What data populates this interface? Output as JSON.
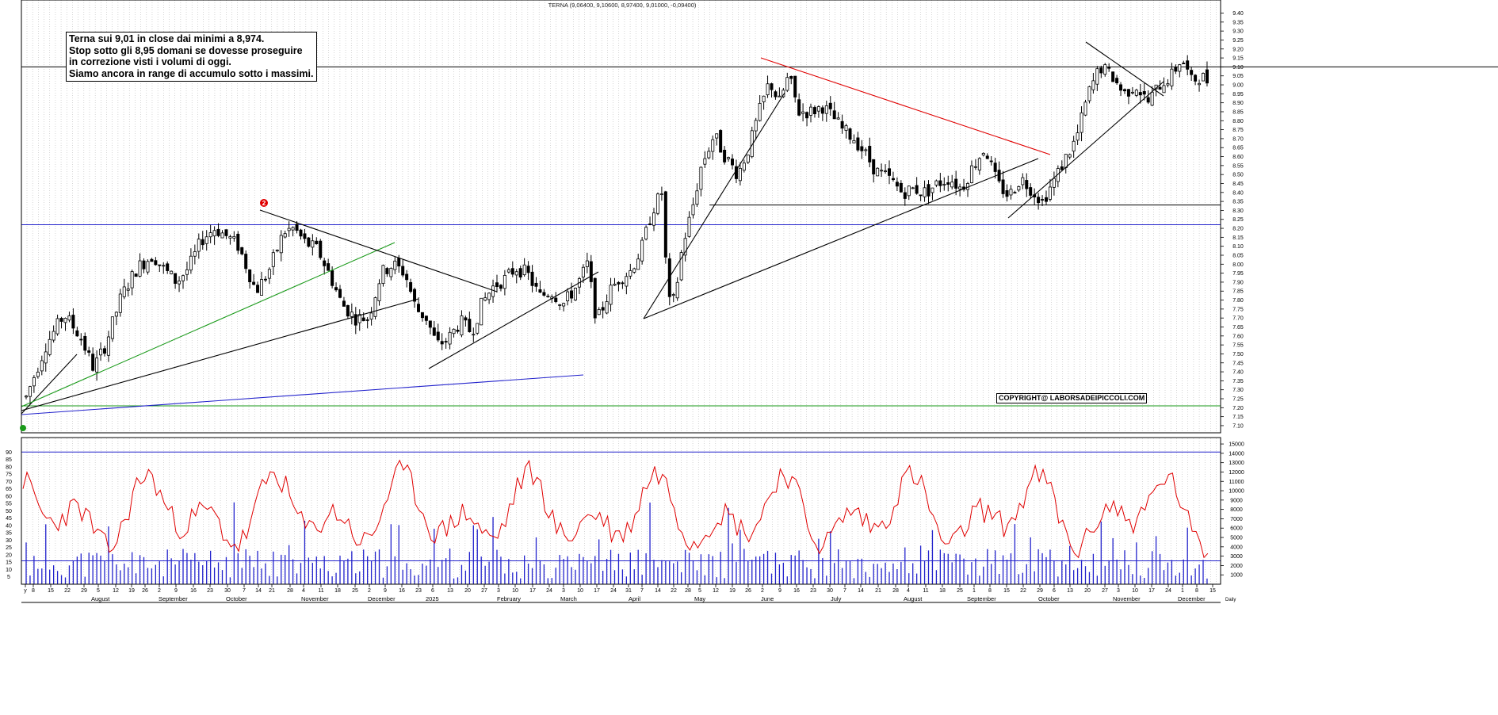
{
  "header": {
    "quote": "TERNA (9,06400, 9,10600, 8,97400, 9,01000, -0,09400)"
  },
  "annotation": {
    "lines": [
      "Terna sui 9,01 in close dai minimi a 8,974.",
      "Stop sotto gli 8,95 domani se dovesse proseguire",
      "in correzione visti i volumi di oggi.",
      "Siamo ancora in range di accumulo sotto i massimi."
    ]
  },
  "copyright": "COPYRIGHT@ LABORSADEIPICCOLI.COM",
  "marker_label": "2",
  "colors": {
    "candle": "#000000",
    "volume": "#2222cc",
    "oscillator": "#e00000",
    "support": "#2222cc",
    "green_line": "#1a9a1a",
    "red_trend": "#e00000",
    "trend": "#000000",
    "grid": "#bbbbbb"
  },
  "chart_data": [
    {
      "type": "candlestick",
      "title": "TERNA (9,06400, 9,10600, 8,97400, 9,01000, -0,09400)",
      "ylim": [
        7.06,
        9.42
      ],
      "y_ticks": [
        "9.40",
        "9.35",
        "9.30",
        "9.25",
        "9.20",
        "9.15",
        "9.10",
        "9.05",
        "9.00",
        "8.95",
        "8.90",
        "8.85",
        "8.80",
        "8.75",
        "8.70",
        "8.65",
        "8.60",
        "8.55",
        "8.50",
        "8.45",
        "8.40",
        "8.35",
        "8.30",
        "8.25",
        "8.20",
        "8.15",
        "8.10",
        "8.05",
        "8.00",
        "7.95",
        "7.90",
        "7.85",
        "7.80",
        "7.75",
        "7.70",
        "7.65",
        "7.60",
        "7.55",
        "7.50",
        "7.45",
        "7.40",
        "7.35",
        "7.30",
        "7.25",
        "7.20",
        "7.15",
        "7.10"
      ],
      "price_path": [
        [
          0,
          7.26
        ],
        [
          25,
          7.55
        ],
        [
          48,
          7.72
        ],
        [
          68,
          7.6
        ],
        [
          85,
          7.42
        ],
        [
          100,
          7.55
        ],
        [
          120,
          7.82
        ],
        [
          140,
          7.98
        ],
        [
          160,
          8.05
        ],
        [
          172,
          7.98
        ],
        [
          190,
          7.9
        ],
        [
          205,
          7.98
        ],
        [
          222,
          8.14
        ],
        [
          238,
          8.2
        ],
        [
          255,
          8.15
        ],
        [
          268,
          8.1
        ],
        [
          290,
          7.85
        ],
        [
          305,
          7.95
        ],
        [
          325,
          8.18
        ],
        [
          338,
          8.2
        ],
        [
          352,
          8.12
        ],
        [
          368,
          8.08
        ],
        [
          385,
          7.92
        ],
        [
          398,
          7.78
        ],
        [
          415,
          7.7
        ],
        [
          432,
          7.7
        ],
        [
          448,
          7.95
        ],
        [
          463,
          8.0
        ],
        [
          478,
          7.95
        ],
        [
          492,
          7.75
        ],
        [
          505,
          7.7
        ],
        [
          518,
          7.55
        ],
        [
          532,
          7.58
        ],
        [
          548,
          7.68
        ],
        [
          562,
          7.62
        ],
        [
          575,
          7.78
        ],
        [
          590,
          7.88
        ],
        [
          605,
          7.92
        ],
        [
          618,
          7.98
        ],
        [
          632,
          7.95
        ],
        [
          648,
          7.82
        ],
        [
          662,
          7.85
        ],
        [
          678,
          7.78
        ],
        [
          695,
          7.88
        ],
        [
          708,
          8.0
        ],
        [
          720,
          7.68
        ],
        [
          735,
          7.84
        ],
        [
          748,
          7.92
        ],
        [
          762,
          7.96
        ],
        [
          776,
          8.08
        ],
        [
          790,
          8.3
        ],
        [
          802,
          8.4
        ],
        [
          810,
          7.78
        ],
        [
          818,
          7.8
        ],
        [
          828,
          8.1
        ],
        [
          840,
          8.3
        ],
        [
          852,
          8.55
        ],
        [
          868,
          8.72
        ],
        [
          882,
          8.6
        ],
        [
          898,
          8.5
        ],
        [
          912,
          8.65
        ],
        [
          925,
          8.85
        ],
        [
          938,
          9.02
        ],
        [
          950,
          8.9
        ],
        [
          962,
          9.05
        ],
        [
          975,
          8.85
        ],
        [
          990,
          8.85
        ],
        [
          1005,
          8.88
        ],
        [
          1018,
          8.82
        ],
        [
          1030,
          8.75
        ],
        [
          1045,
          8.7
        ],
        [
          1058,
          8.62
        ],
        [
          1072,
          8.52
        ],
        [
          1088,
          8.48
        ],
        [
          1105,
          8.4
        ],
        [
          1120,
          8.42
        ],
        [
          1135,
          8.4
        ],
        [
          1150,
          8.45
        ],
        [
          1165,
          8.48
        ],
        [
          1180,
          8.42
        ],
        [
          1195,
          8.55
        ],
        [
          1210,
          8.65
        ],
        [
          1225,
          8.45
        ],
        [
          1240,
          8.38
        ],
        [
          1255,
          8.48
        ],
        [
          1268,
          8.42
        ],
        [
          1282,
          8.35
        ],
        [
          1295,
          8.45
        ],
        [
          1310,
          8.58
        ],
        [
          1325,
          8.7
        ],
        [
          1340,
          8.95
        ],
        [
          1355,
          9.1
        ],
        [
          1370,
          9.05
        ],
        [
          1385,
          8.95
        ],
        [
          1400,
          9.0
        ],
        [
          1415,
          8.9
        ],
        [
          1430,
          9.0
        ],
        [
          1445,
          9.05
        ],
        [
          1458,
          9.15
        ],
        [
          1470,
          9.02
        ],
        [
          1482,
          9.05
        ],
        [
          1494,
          9.01
        ]
      ],
      "support_levels": [
        9.1,
        8.33,
        8.22,
        7.21
      ],
      "last_close": 9.01
    },
    {
      "type": "bar+line",
      "left_ticks": [
        "90",
        "85",
        "80",
        "75",
        "70",
        "65",
        "60",
        "55",
        "50",
        "45",
        "40",
        "35",
        "30",
        "25",
        "20",
        "15",
        "10",
        "5"
      ],
      "right_ticks": [
        "15000",
        "14000",
        "13000",
        "12000",
        "11000",
        "10000",
        "9000",
        "8000",
        "7000",
        "6000",
        "5000",
        "4000",
        "3000",
        "2000",
        "1000"
      ],
      "ylim_oscillator": [
        0,
        95
      ],
      "ylim_volume": [
        0,
        15600
      ],
      "oscillator_level": 90,
      "volume_level": 2500
    }
  ],
  "x_axis": {
    "small_ticks": [
      {
        "label": "y",
        "x": 32
      },
      {
        "label": "8",
        "x": 42
      },
      {
        "label": "15",
        "x": 64
      },
      {
        "label": "22",
        "x": 85
      },
      {
        "label": "29",
        "x": 106
      },
      {
        "label": "5",
        "x": 124
      },
      {
        "label": "12",
        "x": 146
      },
      {
        "label": "19",
        "x": 166
      },
      {
        "label": "26",
        "x": 183
      },
      {
        "label": "2",
        "x": 201
      },
      {
        "label": "9",
        "x": 222
      },
      {
        "label": "16",
        "x": 244
      },
      {
        "label": "23",
        "x": 265
      },
      {
        "label": "30",
        "x": 287
      },
      {
        "label": "7",
        "x": 308
      },
      {
        "label": "14",
        "x": 326
      },
      {
        "label": "21",
        "x": 343
      },
      {
        "label": "28",
        "x": 366
      },
      {
        "label": "4",
        "x": 383
      },
      {
        "label": "11",
        "x": 405
      },
      {
        "label": "18",
        "x": 426
      },
      {
        "label": "25",
        "x": 448
      },
      {
        "label": "2",
        "x": 466
      },
      {
        "label": "9",
        "x": 486
      },
      {
        "label": "16",
        "x": 507
      },
      {
        "label": "23",
        "x": 528
      },
      {
        "label": "6",
        "x": 546
      },
      {
        "label": "13",
        "x": 568
      },
      {
        "label": "20",
        "x": 590
      },
      {
        "label": "27",
        "x": 611
      },
      {
        "label": "3",
        "x": 629
      },
      {
        "label": "10",
        "x": 650
      },
      {
        "label": "17",
        "x": 672
      },
      {
        "label": "24",
        "x": 693
      },
      {
        "label": "3",
        "x": 711
      },
      {
        "label": "10",
        "x": 732
      },
      {
        "label": "17",
        "x": 753
      },
      {
        "label": "24",
        "x": 774
      },
      {
        "label": "31",
        "x": 793
      },
      {
        "label": "7",
        "x": 810
      },
      {
        "label": "14",
        "x": 830
      },
      {
        "label": "22",
        "x": 850
      },
      {
        "label": "28",
        "x": 868
      },
      {
        "label": "5",
        "x": 883
      },
      {
        "label": "12",
        "x": 903
      },
      {
        "label": "19",
        "x": 924
      },
      {
        "label": "26",
        "x": 944
      },
      {
        "label": "2",
        "x": 962
      },
      {
        "label": "9",
        "x": 984
      },
      {
        "label": "16",
        "x": 1005
      },
      {
        "label": "23",
        "x": 1026
      },
      {
        "label": "30",
        "x": 1047
      },
      {
        "label": "7",
        "x": 1066
      },
      {
        "label": "14",
        "x": 1086
      },
      {
        "label": "21",
        "x": 1108
      },
      {
        "label": "28",
        "x": 1130
      },
      {
        "label": "4",
        "x": 1146
      },
      {
        "label": "11",
        "x": 1168
      },
      {
        "label": "18",
        "x": 1189
      },
      {
        "label": "25",
        "x": 1211
      },
      {
        "label": "1",
        "x": 1229
      },
      {
        "label": "8",
        "x": 1249
      },
      {
        "label": "15",
        "x": 1270
      },
      {
        "label": "22",
        "x": 1291
      },
      {
        "label": "29",
        "x": 1312
      },
      {
        "label": "6",
        "x": 1330
      },
      {
        "label": "13",
        "x": 1350
      },
      {
        "label": "20",
        "x": 1372
      },
      {
        "label": "27",
        "x": 1394
      },
      {
        "label": "3",
        "x": 1411
      },
      {
        "label": "10",
        "x": 1432
      },
      {
        "label": "17",
        "x": 1453
      },
      {
        "label": "24",
        "x": 1474
      },
      {
        "label": "1",
        "x": 1492
      },
      {
        "label": "8",
        "x": 1510
      },
      {
        "label": "15",
        "x": 1530
      }
    ],
    "month_labels": [
      {
        "label": "August",
        "x": 115
      },
      {
        "label": "September",
        "x": 200
      },
      {
        "label": "October",
        "x": 285
      },
      {
        "label": "November",
        "x": 380
      },
      {
        "label": "December",
        "x": 464
      },
      {
        "label": "2025",
        "x": 537
      },
      {
        "label": "February",
        "x": 627
      },
      {
        "label": "March",
        "x": 707
      },
      {
        "label": "April",
        "x": 793
      },
      {
        "label": "May",
        "x": 876
      },
      {
        "label": "June",
        "x": 960
      },
      {
        "label": "July",
        "x": 1048
      },
      {
        "label": "August",
        "x": 1140
      },
      {
        "label": "September",
        "x": 1220
      },
      {
        "label": "October",
        "x": 1310
      },
      {
        "label": "November",
        "x": 1404
      },
      {
        "label": "December",
        "x": 1486
      }
    ],
    "right_edge_label": "Daily"
  }
}
